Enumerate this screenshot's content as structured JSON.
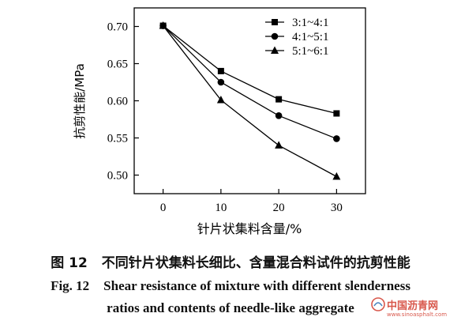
{
  "chart_data": {
    "type": "line",
    "title": "",
    "xlabel": "针片状集料含量/%",
    "ylabel": "抗剪性能/MPa",
    "x": [
      0,
      10,
      20,
      30
    ],
    "xticks": [
      "0",
      "10",
      "20",
      "30"
    ],
    "yticks": [
      "0.50",
      "0.55",
      "0.60",
      "0.65",
      "0.70"
    ],
    "xlim": [
      -5,
      35
    ],
    "ylim": [
      0.475,
      0.725
    ],
    "grid": false,
    "legend_position": "top-right",
    "series": [
      {
        "name": "3:1~4:1",
        "marker": "square",
        "values": [
          0.701,
          0.64,
          0.602,
          0.583
        ]
      },
      {
        "name": "4:1~5:1",
        "marker": "circle",
        "values": [
          0.701,
          0.625,
          0.58,
          0.549
        ]
      },
      {
        "name": "5:1~6:1",
        "marker": "triangle",
        "values": [
          0.701,
          0.601,
          0.54,
          0.498
        ]
      }
    ]
  },
  "caption": {
    "cn_number": "图 12",
    "cn_text": "不同针片状集料长细比、含量混合料试件的抗剪性能",
    "en_number": "Fig. 12",
    "en_line1": "Shear resistance of mixture with different slenderness",
    "en_line2": "ratios and contents of needle-like aggregate"
  },
  "watermark": {
    "name": "中国沥青网",
    "url": "www.sinoasphalt.com"
  }
}
